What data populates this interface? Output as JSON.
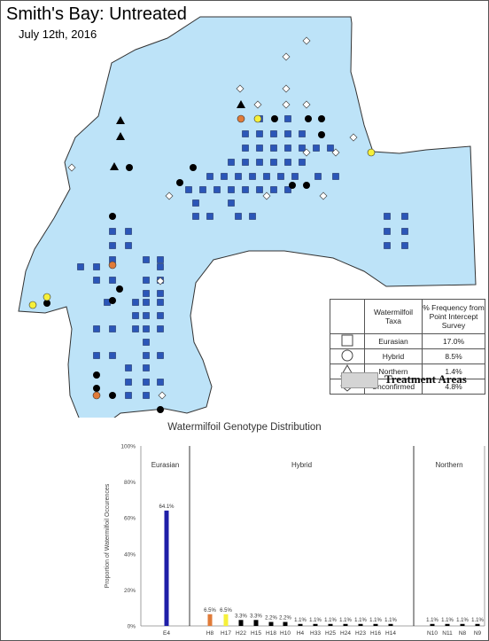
{
  "header": {
    "title": "Smith's Bay: Untreated",
    "date": "July 12th, 2016"
  },
  "map": {
    "water_color": "#bde3f8",
    "shoreline_color": "#333333",
    "marker_colors": {
      "eurasian": "#2b56b8",
      "hybrid_black": "#000000",
      "hybrid_orange": "#e07b39",
      "hybrid_yellow": "#f6f03a",
      "northern": "#000000",
      "unconfirmed": "#ffffff"
    }
  },
  "legend": {
    "header_taxa": "Watermilfoil Taxa",
    "header_freq": "% Frequency from Point Intercept Survey",
    "rows": [
      {
        "symbol": "square-icon",
        "taxa": "Eurasian",
        "freq": "17.0%"
      },
      {
        "symbol": "circle-icon",
        "taxa": "Hybrid",
        "freq": "8.5%"
      },
      {
        "symbol": "triangle-icon",
        "taxa": "Northern",
        "freq": "1.4%"
      },
      {
        "symbol": "diamond-icon",
        "taxa": "Unconfirmed",
        "freq": "4.8%"
      }
    ],
    "treatment_label": "Treatment Areas",
    "treatment_color": "#d4d4d4"
  },
  "chart_data": {
    "type": "bar",
    "title": "Watermilfoil Genotype Distribution",
    "ylabel": "Proportion of Watermilfoil Occurences",
    "ylim": [
      0,
      100
    ],
    "yticks": [
      "0%",
      "20%",
      "40%",
      "60%",
      "80%",
      "100%"
    ],
    "grid": false,
    "groups": [
      {
        "name": "Eurasian",
        "categories": [
          "E4"
        ]
      },
      {
        "name": "Hybrid",
        "categories": [
          "H8",
          "H17",
          "H22",
          "H15",
          "H18",
          "H10",
          "H4",
          "H33",
          "H25",
          "H24",
          "H23",
          "H16",
          "H14"
        ]
      },
      {
        "name": "Northern",
        "categories": [
          "N10",
          "N11",
          "N8",
          "N9"
        ]
      }
    ],
    "categories": [
      "E4",
      "H8",
      "H17",
      "H22",
      "H15",
      "H18",
      "H10",
      "H4",
      "H33",
      "H25",
      "H24",
      "H23",
      "H16",
      "H14",
      "N10",
      "N11",
      "N8",
      "N9"
    ],
    "values": [
      64.1,
      6.5,
      6.5,
      3.3,
      3.3,
      2.2,
      2.2,
      1.1,
      1.1,
      1.1,
      1.1,
      1.1,
      1.1,
      1.1,
      1.1,
      1.1,
      1.1,
      1.1
    ],
    "labels": [
      "64.1%",
      "6.5%",
      "6.5%",
      "3.3%",
      "3.3%",
      "2.2%",
      "2.2%",
      "1.1%",
      "1.1%",
      "1.1%",
      "1.1%",
      "1.1%",
      "1.1%",
      "1.1%",
      "1.1%",
      "1.1%",
      "1.1%",
      "1.1%"
    ],
    "colors": [
      "#1f1fa8",
      "#e07b39",
      "#f6f03a",
      "#000000",
      "#000000",
      "#000000",
      "#000000",
      "#000000",
      "#000000",
      "#000000",
      "#000000",
      "#000000",
      "#000000",
      "#000000",
      "#000000",
      "#000000",
      "#000000",
      "#000000"
    ]
  }
}
